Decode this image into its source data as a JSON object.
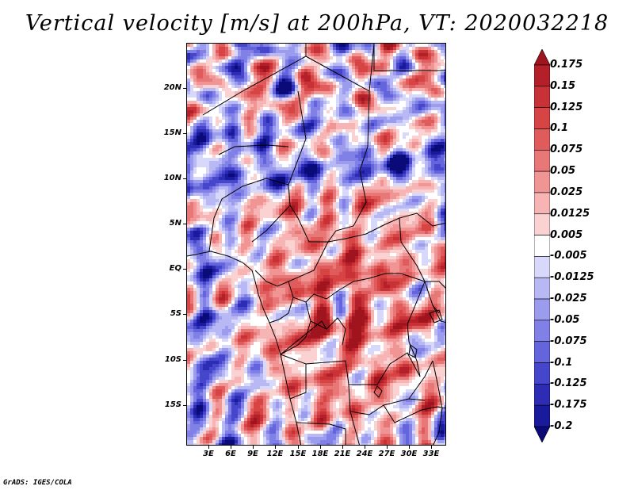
{
  "title": "Vertical velocity [m/s] at 200hPa, VT: 2020032218",
  "footer": "GrADS: IGES/COLA",
  "lat_labels": [
    "20N",
    "15N",
    "10N",
    "5N",
    "EQ",
    "5S",
    "10S",
    "15S"
  ],
  "lat_values": [
    20,
    15,
    10,
    5,
    0,
    -5,
    -10,
    -15
  ],
  "lon_labels": [
    "3E",
    "6E",
    "9E",
    "12E",
    "15E",
    "18E",
    "21E",
    "24E",
    "27E",
    "30E",
    "33E"
  ],
  "lon_values": [
    3,
    6,
    9,
    12,
    15,
    18,
    21,
    24,
    27,
    30,
    33
  ],
  "map_extent": {
    "lon_min": 0,
    "lon_max": 35,
    "lat_min": -19.5,
    "lat_max": 25
  },
  "colorbar": {
    "labels": [
      "0.175",
      "0.15",
      "0.125",
      "0.1",
      "0.075",
      "0.05",
      "0.025",
      "0.0125",
      "0.005",
      "-0.005",
      "-0.0125",
      "-0.025",
      "-0.05",
      "-0.075",
      "-0.1",
      "-0.125",
      "-0.175",
      "-0.2"
    ],
    "colors": [
      "#a0141e",
      "#b4202a",
      "#c83236",
      "#d64444",
      "#e05c5c",
      "#e87878",
      "#f09494",
      "#f6b4b4",
      "#fad2d2",
      "#ffffff",
      "#d8d8fa",
      "#b8b8f4",
      "#9c9cee",
      "#8080e6",
      "#6464dc",
      "#4646cc",
      "#2c2cb4",
      "#1a1a9c",
      "#0a0a78"
    ]
  }
}
